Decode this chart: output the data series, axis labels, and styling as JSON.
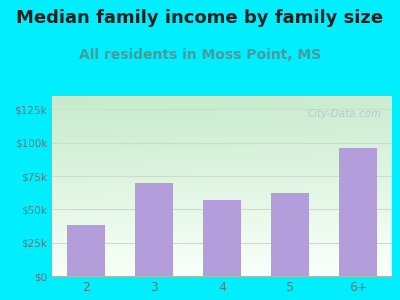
{
  "title": "Median family income by family size",
  "subtitle": "All residents in Moss Point, MS",
  "categories": [
    "2",
    "3",
    "4",
    "5",
    "6+"
  ],
  "values": [
    38000,
    70000,
    57000,
    62000,
    96000
  ],
  "bar_color": "#b39ddb",
  "title_fontsize": 13,
  "subtitle_fontsize": 10,
  "subtitle_color": "#4a9a9a",
  "title_color": "#222222",
  "background_outer": "#00eeff",
  "yticks": [
    0,
    25000,
    50000,
    75000,
    100000,
    125000
  ],
  "ytick_labels": [
    "$0",
    "$25k",
    "$50k",
    "$75k",
    "$100k",
    "$125k"
  ],
  "ylim": [
    0,
    135000
  ],
  "tick_color": "#5a7a7a",
  "watermark": "City-Data.com",
  "grid_color": "#ccddcc",
  "bg_color_topleft": "#c8e6c9",
  "bg_color_bottomright": "#f8fff8"
}
